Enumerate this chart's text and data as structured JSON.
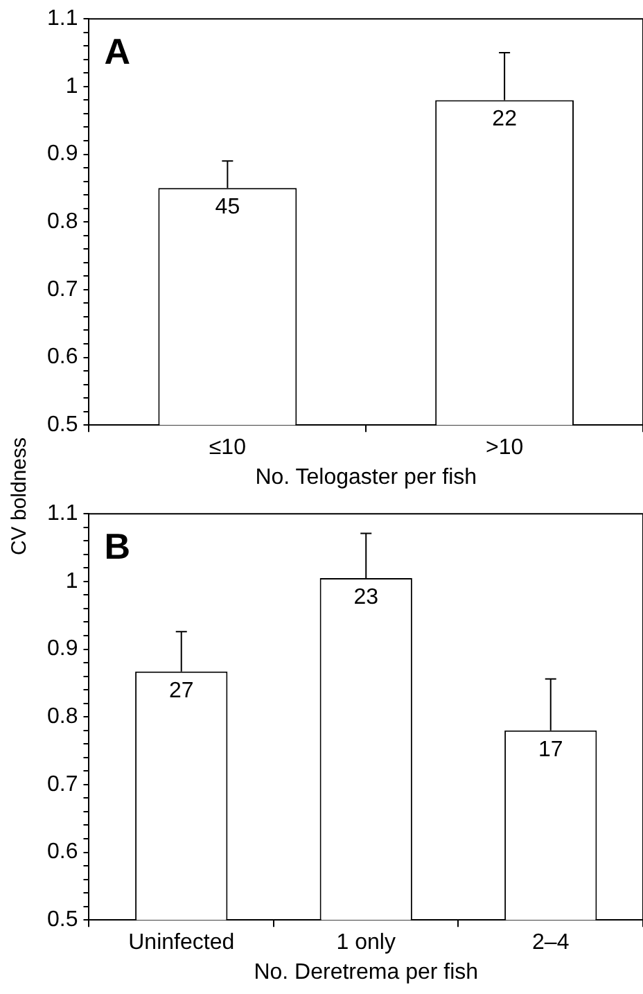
{
  "chart_data": [
    {
      "type": "bar",
      "ylabel": "CV boldness",
      "xlabel": "No. Telogaster per fish",
      "categories": [
        "≤10",
        ">10"
      ],
      "values": [
        0.85,
        0.98
      ],
      "errors": [
        [
          0.85,
          0.89
        ],
        [
          0.98,
          1.05
        ]
      ],
      "color": "#ffffff",
      "ylim": [
        0.5,
        1.1
      ],
      "yticks": [
        0.5,
        {
          "value": 0.52,
          "label": null
        },
        {
          "value": 0.54,
          "label": null
        },
        {
          "value": 0.56,
          "label": null
        },
        {
          "value": 0.58,
          "label": null
        },
        0.6,
        {
          "value": 0.62,
          "label": null
        },
        {
          "value": 0.64,
          "label": null
        },
        {
          "value": 0.66,
          "label": null
        },
        {
          "value": 0.68,
          "label": null
        },
        0.7,
        {
          "value": 0.72,
          "label": null
        },
        {
          "value": 0.74,
          "label": null
        },
        {
          "value": 0.76,
          "label": null
        },
        {
          "value": 0.78,
          "label": null
        },
        0.8,
        {
          "value": 0.82,
          "label": null
        },
        {
          "value": 0.84,
          "label": null
        },
        {
          "value": 0.86,
          "label": null
        },
        {
          "value": 0.88,
          "label": null
        },
        0.9,
        {
          "value": 0.92,
          "label": null
        },
        {
          "value": 0.94,
          "label": null
        },
        {
          "value": 0.96,
          "label": null
        },
        {
          "value": 0.98,
          "label": null
        },
        1,
        {
          "value": 1.02,
          "label": null
        },
        {
          "value": 1.04,
          "label": null
        },
        {
          "value": 1.06,
          "label": null
        },
        {
          "value": 1.08,
          "label": null
        },
        1.1
      ],
      "grid": false,
      "legend": false,
      "annotations": [
        "A",
        {
          "text": "45",
          "x": "≤10",
          "y": 0.85
        },
        {
          "text": "22",
          "x": ">10",
          "y": 0.98
        }
      ]
    },
    {
      "type": "bar",
      "xlabel": "No. Deretrema per fish",
      "categories": [
        "Uninfected",
        "1 only",
        "2–4"
      ],
      "values": [
        0.867,
        1.005,
        0.78
      ],
      "errors": [
        [
          0.867,
          0.926
        ],
        [
          1.005,
          1.071
        ],
        [
          0.78,
          0.856
        ]
      ],
      "color": "#ffffff",
      "ylim": [
        0.5,
        1.1
      ],
      "yticks": [
        0.5,
        {
          "value": 0.52,
          "label": null
        },
        {
          "value": 0.54,
          "label": null
        },
        {
          "value": 0.56,
          "label": null
        },
        {
          "value": 0.58,
          "label": null
        },
        0.6,
        {
          "value": 0.62,
          "label": null
        },
        {
          "value": 0.64,
          "label": null
        },
        {
          "value": 0.66,
          "label": null
        },
        {
          "value": 0.68,
          "label": null
        },
        0.7,
        {
          "value": 0.72,
          "label": null
        },
        {
          "value": 0.74,
          "label": null
        },
        {
          "value": 0.76,
          "label": null
        },
        {
          "value": 0.78,
          "label": null
        },
        0.8,
        {
          "value": 0.82,
          "label": null
        },
        {
          "value": 0.84,
          "label": null
        },
        {
          "value": 0.86,
          "label": null
        },
        {
          "value": 0.88,
          "label": null
        },
        0.9,
        {
          "value": 0.92,
          "label": null
        },
        {
          "value": 0.94,
          "label": null
        },
        {
          "value": 0.96,
          "label": null
        },
        {
          "value": 0.98,
          "label": null
        },
        1,
        {
          "value": 1.02,
          "label": null
        },
        {
          "value": 1.04,
          "label": null
        },
        {
          "value": 1.06,
          "label": null
        },
        {
          "value": 1.08,
          "label": null
        },
        1.1
      ],
      "grid": false,
      "legend": false,
      "annotations": [
        "B",
        {
          "text": "27",
          "x": "Uninfected",
          "y": 0.867
        },
        {
          "text": "23",
          "x": "1 only",
          "y": 1.005
        },
        {
          "text": "17",
          "x": "2–4",
          "y": 0.78
        }
      ]
    }
  ]
}
